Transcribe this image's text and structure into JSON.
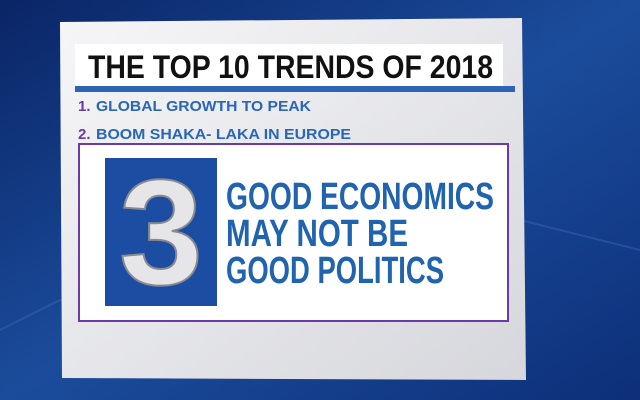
{
  "header": {
    "title": "THE TOP 10 TRENDS OF 2018"
  },
  "items": [
    {
      "number": "1.",
      "text": "GLOBAL GROWTH TO PEAK"
    },
    {
      "number": "2.",
      "text": "BOOM SHAKA- LAKA IN EUROPE"
    }
  ],
  "featured": {
    "number": "3",
    "lines": [
      "GOOD ECONOMICS",
      "MAY NOT BE",
      "GOOD POLITICS"
    ]
  }
}
